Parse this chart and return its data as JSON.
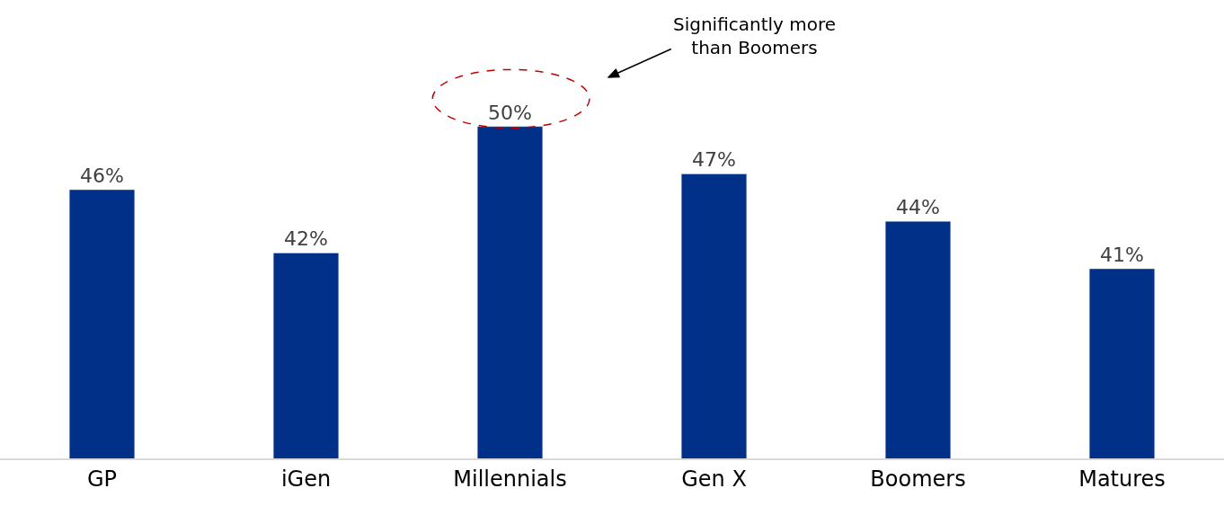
{
  "chart_data": {
    "type": "bar",
    "categories": [
      "GP",
      "iGen",
      "Millennials",
      "Gen X",
      "Boomers",
      "Matures"
    ],
    "values": [
      46,
      42,
      50,
      47,
      44,
      41
    ],
    "value_labels": [
      "46%",
      "42%",
      "50%",
      "47%",
      "44%",
      "41%"
    ],
    "color": "#003087",
    "ylim": [
      29,
      58
    ],
    "legend": false,
    "annotations": [
      "Significantly more\nthan Boomers"
    ]
  }
}
